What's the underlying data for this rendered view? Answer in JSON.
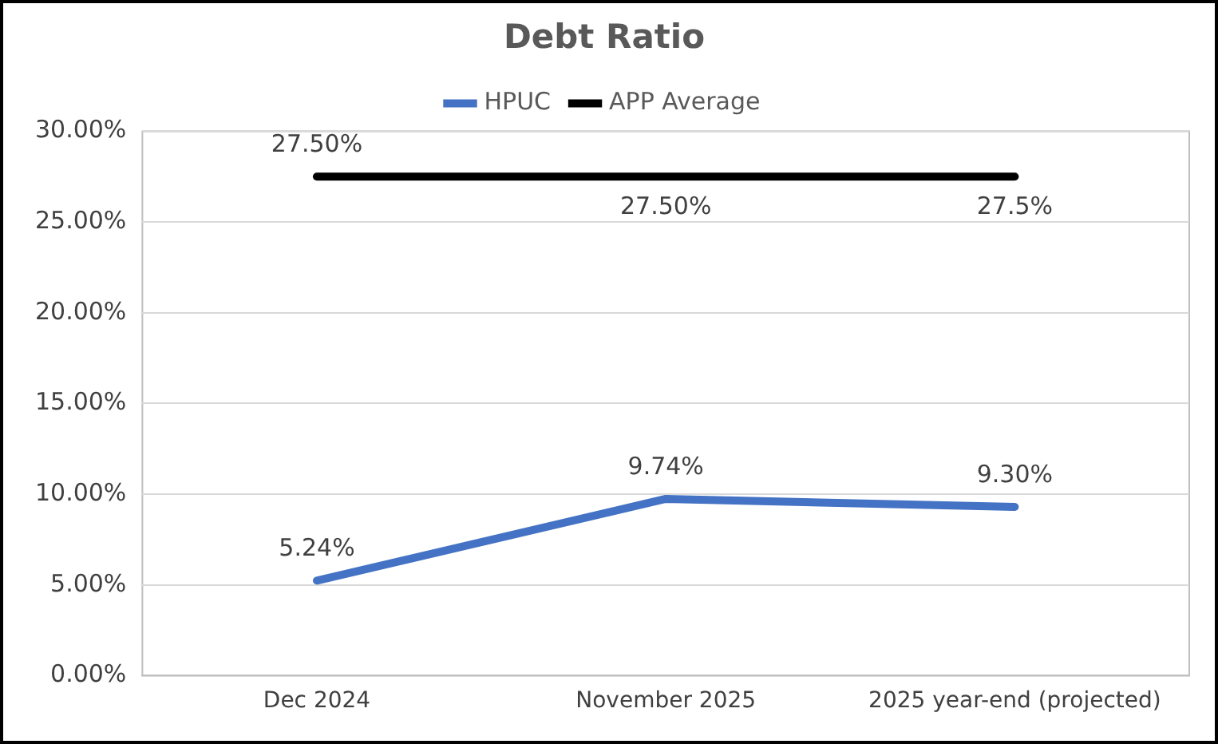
{
  "chart_data": {
    "type": "line",
    "title": "Debt Ratio",
    "categories": [
      "Dec 2024",
      "November 2025",
      "2025 year-end (projected)"
    ],
    "series": [
      {
        "name": "HPUC",
        "color": "#4472c4",
        "values": [
          5.24,
          9.74,
          9.3
        ],
        "value_labels": [
          "5.24%",
          "9.74%",
          "9.30%"
        ]
      },
      {
        "name": "APP Average",
        "color": "#000000",
        "values": [
          27.5,
          27.5,
          27.5
        ],
        "value_labels": [
          "27.50%",
          "27.50%",
          "27.5%"
        ]
      }
    ],
    "ylim": [
      0,
      30
    ],
    "yticks": [
      {
        "value": 0,
        "label": "0.00%"
      },
      {
        "value": 5,
        "label": "5.00%"
      },
      {
        "value": 10,
        "label": "10.00%"
      },
      {
        "value": 15,
        "label": "15.00%"
      },
      {
        "value": 20,
        "label": "20.00%"
      },
      {
        "value": 25,
        "label": "25.00%"
      },
      {
        "value": 30,
        "label": "30.00%"
      }
    ],
    "grid": "y",
    "legend": "top",
    "marker": "none",
    "line_style": "solid"
  }
}
